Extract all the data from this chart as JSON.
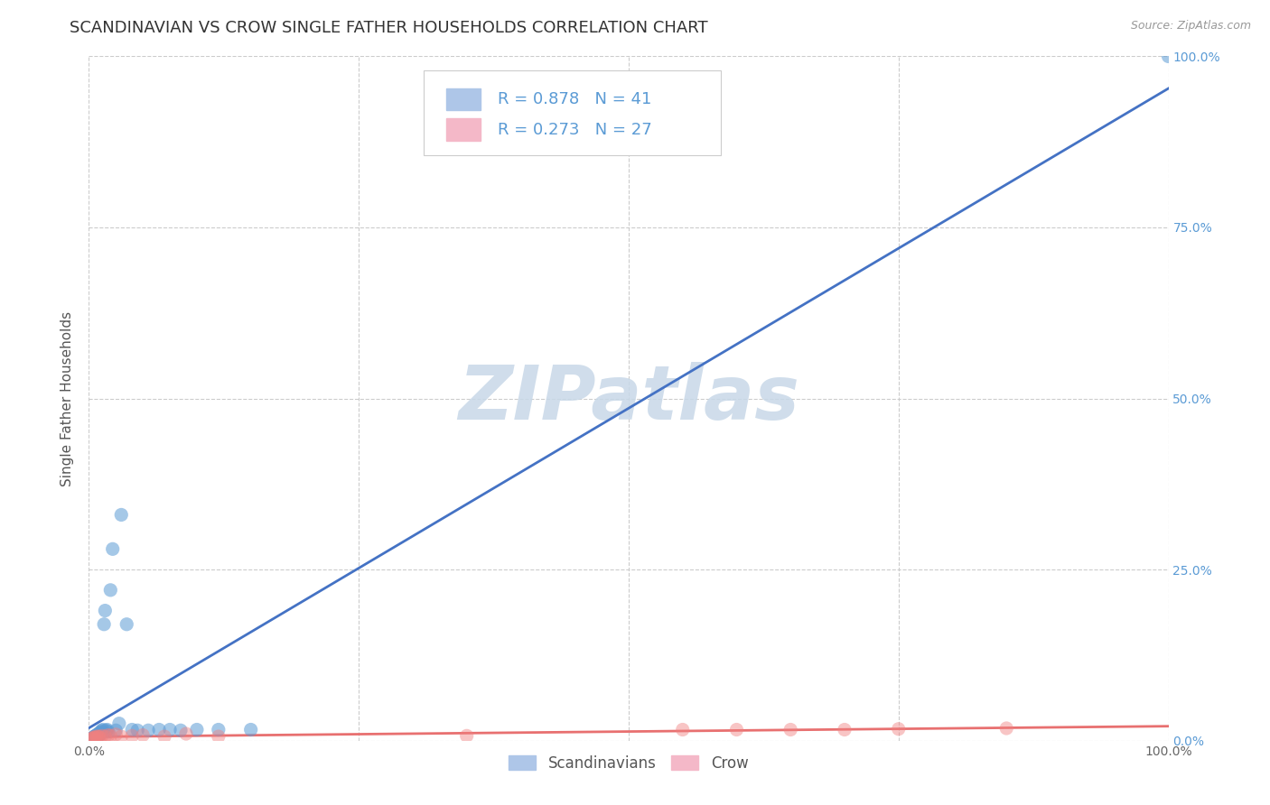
{
  "title": "SCANDINAVIAN VS CROW SINGLE FATHER HOUSEHOLDS CORRELATION CHART",
  "source": "Source: ZipAtlas.com",
  "ylabel": "Single Father Households",
  "xlim": [
    0,
    1
  ],
  "ylim": [
    0,
    1
  ],
  "xticks": [
    0.0,
    0.25,
    0.5,
    0.75,
    1.0
  ],
  "xtick_labels": [
    "0.0%",
    "",
    "",
    "",
    "100.0%"
  ],
  "yticks_right": [
    0.0,
    0.25,
    0.5,
    0.75,
    1.0
  ],
  "ytick_labels_right": [
    "0.0%",
    "25.0%",
    "50.0%",
    "75.0%",
    "100.0%"
  ],
  "scandinavian_color": "#5b9bd5",
  "crow_color": "#f08080",
  "scandinavian_line_color": "#4472c4",
  "crow_line_color": "#e87070",
  "watermark": "ZIPatlas",
  "watermark_color": "#c8d8e8",
  "scan_legend_color": "#aec6e8",
  "crow_legend_color": "#f4b8c8",
  "scandinavian_x": [
    0.002,
    0.003,
    0.004,
    0.004,
    0.005,
    0.005,
    0.006,
    0.006,
    0.007,
    0.007,
    0.008,
    0.008,
    0.009,
    0.009,
    0.01,
    0.01,
    0.011,
    0.012,
    0.012,
    0.013,
    0.014,
    0.015,
    0.016,
    0.017,
    0.018,
    0.02,
    0.022,
    0.025,
    0.028,
    0.03,
    0.035,
    0.04,
    0.045,
    0.055,
    0.065,
    0.075,
    0.085,
    0.1,
    0.12,
    0.15,
    1.0
  ],
  "scandinavian_y": [
    0.002,
    0.003,
    0.003,
    0.005,
    0.004,
    0.006,
    0.005,
    0.007,
    0.006,
    0.008,
    0.007,
    0.009,
    0.008,
    0.01,
    0.009,
    0.012,
    0.01,
    0.013,
    0.015,
    0.016,
    0.17,
    0.19,
    0.015,
    0.016,
    0.013,
    0.22,
    0.28,
    0.015,
    0.025,
    0.33,
    0.17,
    0.016,
    0.015,
    0.015,
    0.016,
    0.016,
    0.015,
    0.016,
    0.016,
    0.016,
    1.0
  ],
  "crow_x": [
    0.002,
    0.003,
    0.004,
    0.005,
    0.006,
    0.007,
    0.008,
    0.009,
    0.01,
    0.012,
    0.015,
    0.018,
    0.02,
    0.025,
    0.03,
    0.04,
    0.05,
    0.07,
    0.09,
    0.12,
    0.35,
    0.55,
    0.6,
    0.65,
    0.7,
    0.75,
    0.85
  ],
  "crow_y": [
    0.002,
    0.003,
    0.004,
    0.005,
    0.004,
    0.006,
    0.005,
    0.006,
    0.005,
    0.007,
    0.006,
    0.008,
    0.007,
    0.009,
    0.006,
    0.007,
    0.008,
    0.006,
    0.01,
    0.006,
    0.007,
    0.016,
    0.016,
    0.016,
    0.016,
    0.017,
    0.018
  ],
  "legend_scandinavian_label": "Scandinavians",
  "legend_crow_label": "Crow",
  "title_fontsize": 13,
  "axis_label_fontsize": 11,
  "tick_fontsize": 10,
  "legend_fontsize": 12
}
